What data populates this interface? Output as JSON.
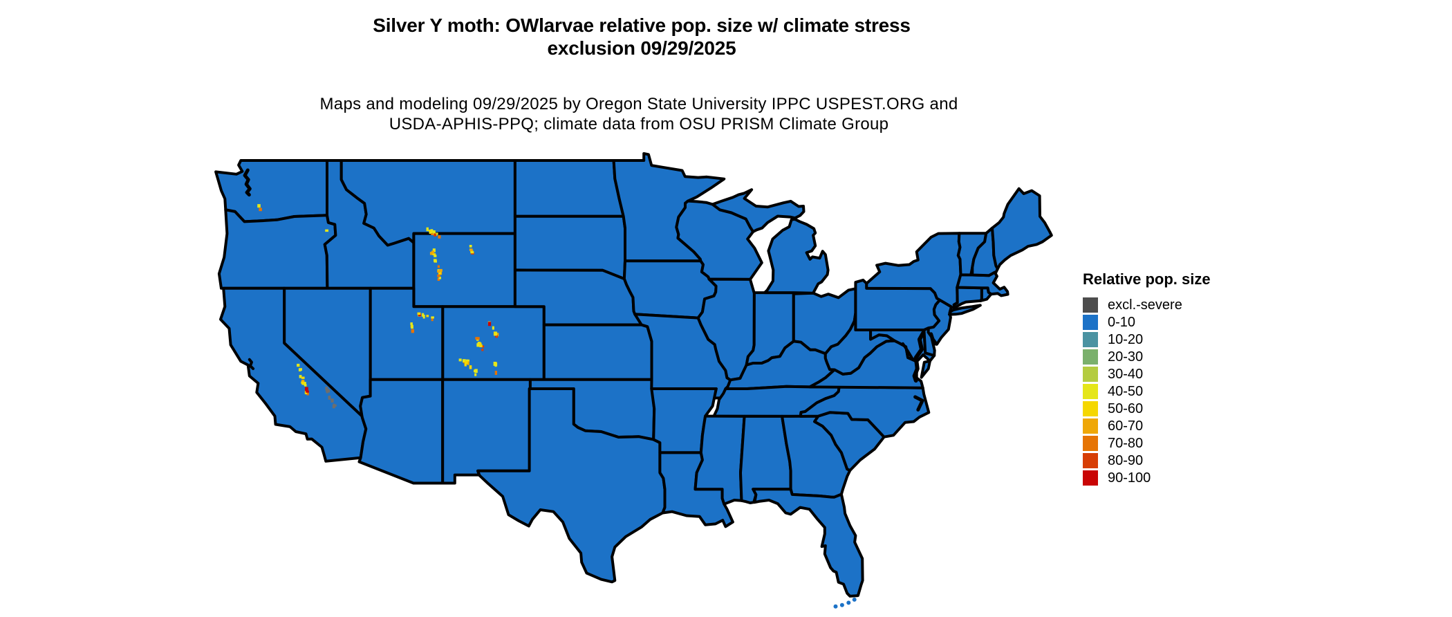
{
  "title": {
    "line1": "Silver Y moth: OWlarvae relative pop. size w/ climate stress",
    "line2": "exclusion 09/29/2025"
  },
  "subtitle": {
    "line1": "Maps and modeling 09/29/2025 by Oregon State University IPPC USPEST.ORG and",
    "line2": "USDA-APHIS-PPQ; climate data from OSU PRISM Climate Group"
  },
  "legend": {
    "title": "Relative pop. size",
    "entries": [
      {
        "label": "excl.-severe",
        "color": "#4d4d4d"
      },
      {
        "label": "0-10",
        "color": "#1c72c7"
      },
      {
        "label": "10-20",
        "color": "#4b93a2"
      },
      {
        "label": "20-30",
        "color": "#7ab06c"
      },
      {
        "label": "30-40",
        "color": "#b4cc40"
      },
      {
        "label": "40-50",
        "color": "#e5e619"
      },
      {
        "label": "50-60",
        "color": "#f5d700"
      },
      {
        "label": "60-70",
        "color": "#efa707"
      },
      {
        "label": "70-80",
        "color": "#e67404"
      },
      {
        "label": "80-90",
        "color": "#d73e05"
      },
      {
        "label": "90-100",
        "color": "#c90505"
      }
    ]
  },
  "map": {
    "fill_color": "#1c72c7",
    "border_color": "#000000",
    "background_color": "#ffffff",
    "dominant_class": "0-10",
    "hotspots": {
      "palette": {
        "yellow": "#e5e619",
        "gold": "#f5d700",
        "orange": "#efa707",
        "dark_orange": "#e67404",
        "red": "#d73e05",
        "dark_red": "#c90505",
        "gray": "#6e6e6e"
      },
      "clusters": [
        {
          "name": "washington-cascades",
          "lon": -121.85,
          "lat": 46.65,
          "dlon": 0.1,
          "dlat": 0.45,
          "dots": 2,
          "type": "warm"
        },
        {
          "name": "oregon-wallowa",
          "lon": -117.25,
          "lat": 45.25,
          "dlon": 0.1,
          "dlat": 0.1,
          "dots": 1,
          "type": "warm"
        },
        {
          "name": "montana-beartooth",
          "lon": -109.9,
          "lat": 45.15,
          "dlon": 0.55,
          "dlat": 0.25,
          "dots": 12,
          "type": "warm"
        },
        {
          "name": "wyoming-absaroka-wind-river",
          "lon": -109.6,
          "lat": 43.5,
          "dlon": 0.35,
          "dlat": 0.95,
          "dots": 16,
          "type": "warm"
        },
        {
          "name": "wyoming-bighorn",
          "lon": -107.2,
          "lat": 44.25,
          "dlon": 0.12,
          "dlat": 0.3,
          "dots": 5,
          "type": "warm"
        },
        {
          "name": "utah-uinta",
          "lon": -110.3,
          "lat": 40.55,
          "dlon": 0.5,
          "dlat": 0.12,
          "dots": 8,
          "type": "warm"
        },
        {
          "name": "utah-wasatch",
          "lon": -111.3,
          "lat": 40.2,
          "dlon": 0.1,
          "dlat": 0.5,
          "dots": 4,
          "type": "warm"
        },
        {
          "name": "colorado-front-range",
          "lon": -105.65,
          "lat": 39.9,
          "dlon": 0.3,
          "dlat": 0.6,
          "dots": 9,
          "type": "warm"
        },
        {
          "name": "colorado-sawatch",
          "lon": -106.6,
          "lat": 39.0,
          "dlon": 0.4,
          "dlat": 0.55,
          "dots": 9,
          "type": "warm"
        },
        {
          "name": "colorado-san-juan",
          "lon": -107.4,
          "lat": 37.9,
          "dlon": 0.55,
          "dlat": 0.45,
          "dots": 12,
          "type": "warm"
        },
        {
          "name": "colorado-sangre-de-cristo",
          "lon": -105.5,
          "lat": 37.9,
          "dlon": 0.15,
          "dlat": 0.55,
          "dots": 5,
          "type": "warm"
        },
        {
          "name": "california-sierra-nevada",
          "lon": -118.85,
          "lat": 37.2,
          "dlon": 0.35,
          "dlat": 0.85,
          "dots": 16,
          "type": "warm"
        },
        {
          "name": "california-desert-excluded",
          "lon": -116.9,
          "lat": 36.1,
          "dlon": 0.3,
          "dlat": 0.6,
          "dots": 12,
          "type": "gray"
        }
      ]
    }
  }
}
